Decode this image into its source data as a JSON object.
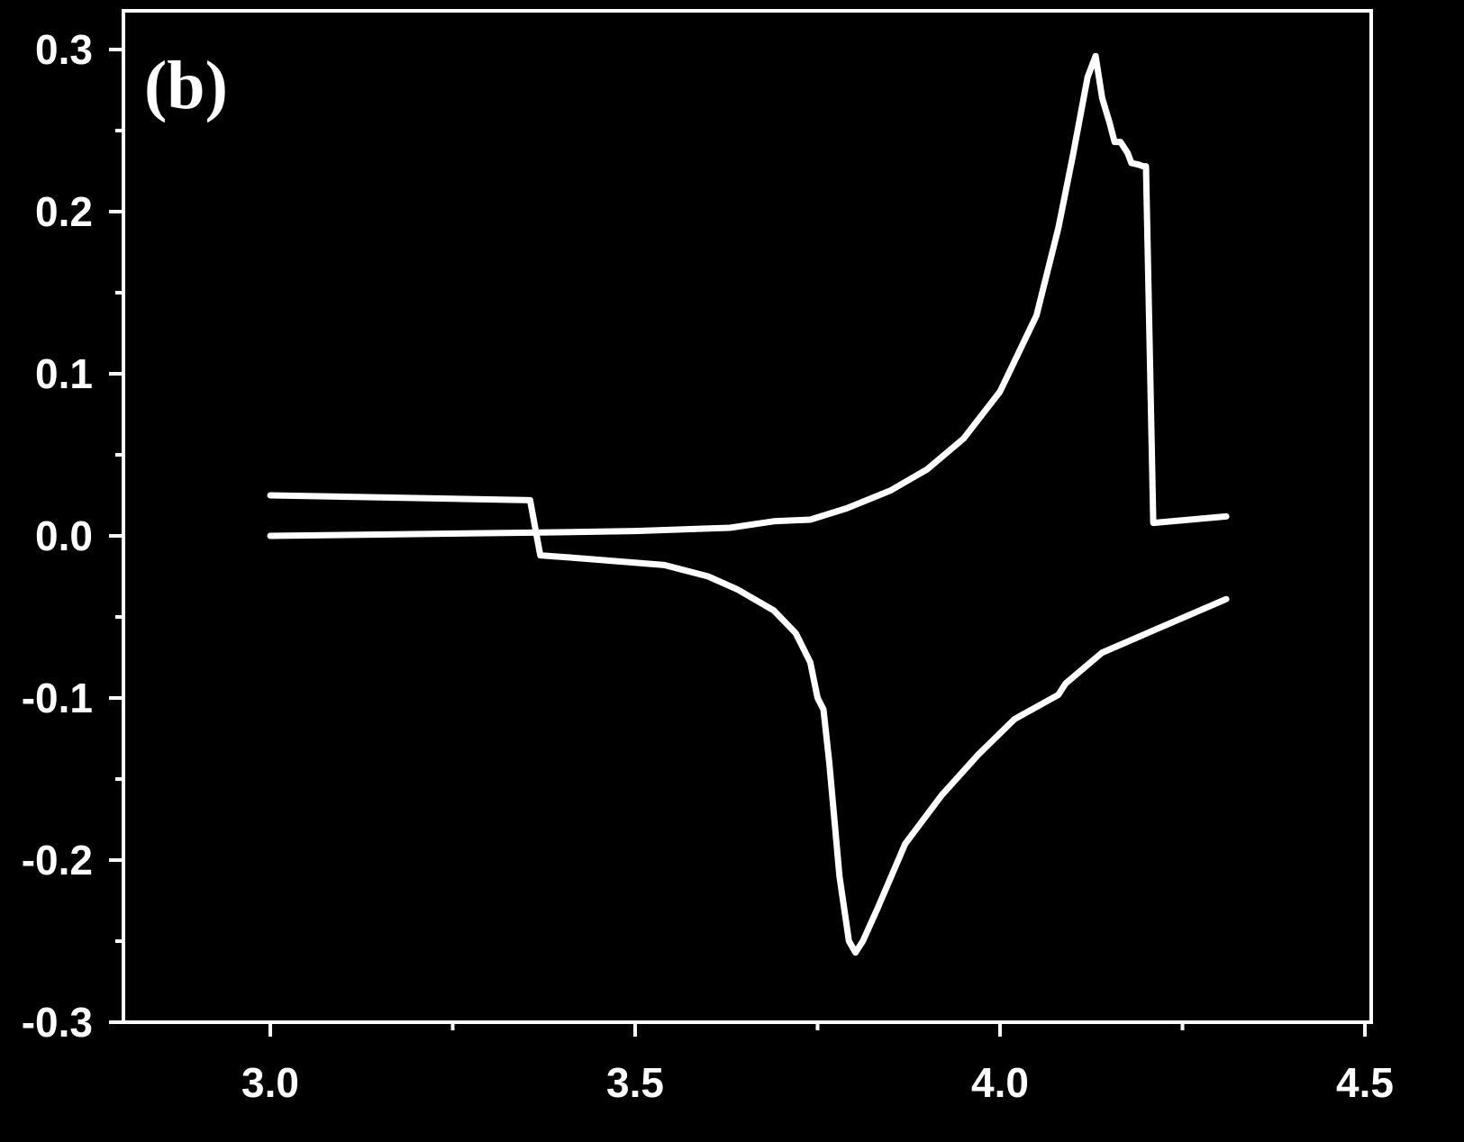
{
  "chart_data": {
    "type": "line",
    "panel_label": "(b)",
    "title": "",
    "xlabel": "",
    "ylabel": "",
    "xlim": [
      2.8,
      4.5
    ],
    "ylim": [
      -0.3,
      0.32
    ],
    "x_major_ticks": [
      3.0,
      3.5,
      4.0,
      4.5
    ],
    "x_tick_labels": [
      "3.0",
      "3.5",
      "4.0",
      "4.5"
    ],
    "x_minor_ticks": [
      3.25,
      3.75,
      4.25
    ],
    "y_major_ticks": [
      -0.3,
      -0.2,
      -0.1,
      0.0,
      0.1,
      0.2,
      0.3
    ],
    "y_tick_labels": [
      "-0.3",
      "-0.2",
      "-0.1",
      "0.0",
      "0.1",
      "0.2",
      "0.3"
    ],
    "y_minor_ticks": [
      -0.25,
      -0.15,
      -0.05,
      0.05,
      0.15,
      0.25
    ],
    "grid": false,
    "legend": "none",
    "colors": {
      "background": "#000000",
      "foreground": "#ffffff"
    },
    "series": [
      {
        "values": [
          [
            3.0,
            0.0
          ],
          [
            3.36,
            0.002
          ],
          [
            3.5,
            0.003
          ],
          [
            3.63,
            0.005
          ],
          [
            3.69,
            0.009
          ],
          [
            3.74,
            0.01
          ],
          [
            3.79,
            0.017
          ],
          [
            3.85,
            0.028
          ],
          [
            3.9,
            0.041
          ],
          [
            3.95,
            0.06
          ],
          [
            4.0,
            0.089
          ],
          [
            4.05,
            0.136
          ],
          [
            4.08,
            0.19
          ],
          [
            4.1,
            0.235
          ],
          [
            4.12,
            0.283
          ],
          [
            4.131,
            0.296
          ],
          [
            4.14,
            0.27
          ],
          [
            4.15,
            0.255
          ],
          [
            4.157,
            0.243
          ],
          [
            4.165,
            0.243
          ],
          [
            4.175,
            0.236
          ],
          [
            4.18,
            0.23
          ],
          [
            4.19,
            0.229
          ],
          [
            4.196,
            0.228
          ],
          [
            4.2,
            0.228
          ],
          [
            4.21,
            0.008
          ],
          [
            4.31,
            0.012
          ]
        ]
      },
      {
        "values": [
          [
            3.0,
            0.025
          ],
          [
            3.356,
            0.022
          ],
          [
            3.37,
            -0.012
          ],
          [
            3.43,
            -0.014
          ],
          [
            3.54,
            -0.018
          ],
          [
            3.6,
            -0.025
          ],
          [
            3.64,
            -0.033
          ],
          [
            3.69,
            -0.046
          ],
          [
            3.72,
            -0.06
          ],
          [
            3.74,
            -0.078
          ],
          [
            3.75,
            -0.1
          ],
          [
            3.758,
            -0.107
          ],
          [
            3.766,
            -0.14
          ],
          [
            3.78,
            -0.21
          ],
          [
            3.793,
            -0.25
          ],
          [
            3.802,
            -0.257
          ],
          [
            3.812,
            -0.25
          ],
          [
            3.832,
            -0.23
          ],
          [
            3.87,
            -0.19
          ],
          [
            3.92,
            -0.16
          ],
          [
            3.97,
            -0.135
          ],
          [
            4.02,
            -0.113
          ],
          [
            4.08,
            -0.098
          ],
          [
            4.09,
            -0.091
          ],
          [
            4.14,
            -0.072
          ],
          [
            4.31,
            -0.039
          ]
        ]
      }
    ]
  }
}
